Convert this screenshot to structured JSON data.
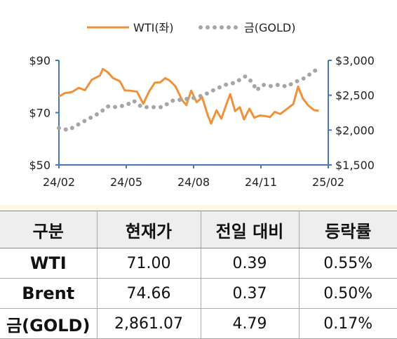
{
  "chart_data": {
    "type": "line",
    "legend_position": "top-center",
    "grid": false,
    "x_ticks": [
      "24/02",
      "24/05",
      "24/08",
      "24/11",
      "25/02"
    ],
    "x_range": [
      "2024-02-01",
      "2025-02-28"
    ],
    "y_left": {
      "range": [
        50,
        90
      ],
      "ticks": [
        "$50",
        "$70",
        "$90"
      ]
    },
    "y_right": {
      "range": [
        1500,
        3000
      ],
      "ticks": [
        "$1,500",
        "$2,000",
        "$2,500",
        "$3,000"
      ]
    },
    "series": [
      {
        "name": "WTI(좌)",
        "axis": "left",
        "style": "solid",
        "color": "#f0913a",
        "points": [
          [
            "2024-02-01",
            76.2
          ],
          [
            "2024-02-10",
            77.5
          ],
          [
            "2024-02-20",
            77.9
          ],
          [
            "2024-03-01",
            79.5
          ],
          [
            "2024-03-10",
            78.6
          ],
          [
            "2024-03-20",
            82.6
          ],
          [
            "2024-04-01",
            84.2
          ],
          [
            "2024-04-05",
            86.7
          ],
          [
            "2024-04-12",
            85.5
          ],
          [
            "2024-04-20",
            83.2
          ],
          [
            "2024-04-30",
            82.0
          ],
          [
            "2024-05-07",
            78.5
          ],
          [
            "2024-05-15",
            78.4
          ],
          [
            "2024-05-25",
            78.0
          ],
          [
            "2024-06-03",
            73.4
          ],
          [
            "2024-06-12",
            78.3
          ],
          [
            "2024-06-20",
            81.5
          ],
          [
            "2024-06-28",
            81.6
          ],
          [
            "2024-07-05",
            83.2
          ],
          [
            "2024-07-12",
            82.2
          ],
          [
            "2024-07-20",
            80.1
          ],
          [
            "2024-07-30",
            74.7
          ],
          [
            "2024-08-05",
            72.9
          ],
          [
            "2024-08-12",
            78.4
          ],
          [
            "2024-08-20",
            74.0
          ],
          [
            "2024-08-28",
            75.9
          ],
          [
            "2024-09-05",
            69.2
          ],
          [
            "2024-09-10",
            65.8
          ],
          [
            "2024-09-18",
            70.9
          ],
          [
            "2024-09-25",
            67.7
          ],
          [
            "2024-10-03",
            73.7
          ],
          [
            "2024-10-08",
            77.1
          ],
          [
            "2024-10-15",
            70.6
          ],
          [
            "2024-10-22",
            72.1
          ],
          [
            "2024-10-28",
            67.4
          ],
          [
            "2024-11-05",
            71.5
          ],
          [
            "2024-11-12",
            68.1
          ],
          [
            "2024-11-20",
            68.9
          ],
          [
            "2024-11-28",
            68.7
          ],
          [
            "2024-12-05",
            68.3
          ],
          [
            "2024-12-12",
            70.3
          ],
          [
            "2024-12-20",
            69.5
          ],
          [
            "2024-12-31",
            71.7
          ],
          [
            "2025-01-08",
            73.3
          ],
          [
            "2025-01-15",
            80.0
          ],
          [
            "2025-01-22",
            75.4
          ],
          [
            "2025-01-30",
            72.7
          ],
          [
            "2025-02-07",
            71.0
          ],
          [
            "2025-02-14",
            70.7
          ]
        ]
      },
      {
        "name": "금(GOLD)",
        "axis": "right",
        "style": "dotted",
        "color": "#a6a6a6",
        "points": [
          [
            "2024-02-01",
            2030
          ],
          [
            "2024-02-15",
            2000
          ],
          [
            "2024-03-01",
            2085
          ],
          [
            "2024-03-15",
            2160
          ],
          [
            "2024-04-01",
            2250
          ],
          [
            "2024-04-12",
            2340
          ],
          [
            "2024-04-25",
            2330
          ],
          [
            "2024-05-10",
            2360
          ],
          [
            "2024-05-20",
            2420
          ],
          [
            "2024-06-01",
            2330
          ],
          [
            "2024-06-15",
            2330
          ],
          [
            "2024-07-01",
            2330
          ],
          [
            "2024-07-15",
            2420
          ],
          [
            "2024-08-01",
            2440
          ],
          [
            "2024-08-15",
            2460
          ],
          [
            "2024-08-30",
            2500
          ],
          [
            "2024-09-15",
            2580
          ],
          [
            "2024-10-01",
            2650
          ],
          [
            "2024-10-15",
            2680
          ],
          [
            "2024-10-30",
            2770
          ],
          [
            "2024-11-10",
            2680
          ],
          [
            "2024-11-15",
            2570
          ],
          [
            "2024-11-25",
            2650
          ],
          [
            "2024-12-05",
            2630
          ],
          [
            "2024-12-15",
            2650
          ],
          [
            "2024-12-30",
            2625
          ],
          [
            "2025-01-10",
            2690
          ],
          [
            "2025-01-20",
            2720
          ],
          [
            "2025-02-01",
            2800
          ],
          [
            "2025-02-10",
            2860
          ]
        ]
      }
    ]
  },
  "table": {
    "headers": [
      "구분",
      "현재가",
      "전일 대비",
      "등락률"
    ],
    "rows": [
      {
        "label": "WTI",
        "price": "71.00",
        "change": "0.39",
        "rate": "0.55%"
      },
      {
        "label": "Brent",
        "price": "74.66",
        "change": "0.37",
        "rate": "0.50%"
      },
      {
        "label": "금(GOLD)",
        "price": "2,861.07",
        "change": "4.79",
        "rate": "0.17%"
      }
    ]
  }
}
